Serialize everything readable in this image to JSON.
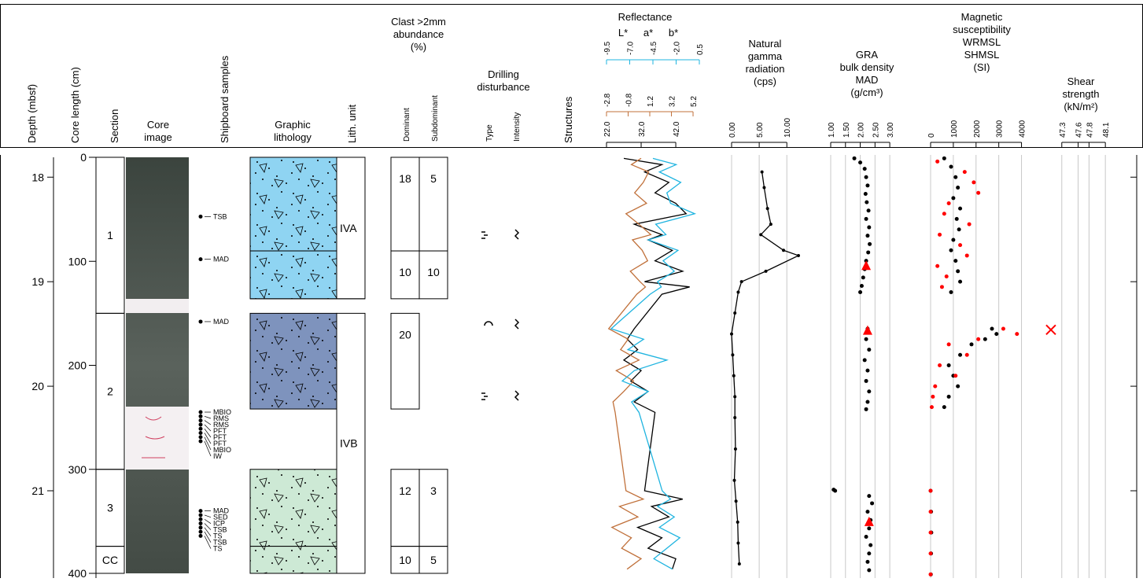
{
  "headers": {
    "depth": "Depth (mbsf)",
    "core_length": "Core length (cm)",
    "section": "Section",
    "core_image": [
      "Core",
      "image"
    ],
    "samples": "Shipboard samples",
    "lithology": [
      "Graphic",
      "lithology"
    ],
    "lith_unit": "Lith. unit",
    "clast": [
      "Clast >2mm",
      "abundance",
      "(%)"
    ],
    "dominant": "Dominant",
    "subdominant": "Subdominant",
    "disturbance": [
      "Drilling",
      "disturbance"
    ],
    "type": "Type",
    "intensity": "Intensity",
    "structures": "Structures"
  },
  "depth_axis": {
    "lim": [
      17.81,
      21.79
    ],
    "ticks": [
      18,
      19,
      20,
      21
    ]
  },
  "core_axis": {
    "lim": [
      0,
      400
    ],
    "ticks": [
      0,
      100,
      200,
      300,
      400
    ]
  },
  "sections": [
    {
      "label": "1",
      "top": 0,
      "bottom": 150
    },
    {
      "label": "2",
      "top": 150,
      "bottom": 300
    },
    {
      "label": "3",
      "top": 300,
      "bottom": 374
    },
    {
      "label": "CC",
      "top": 374,
      "bottom": 400
    }
  ],
  "lith_units": [
    {
      "label": "IVA",
      "top": 0,
      "bottom": 136
    },
    {
      "label": "IVB",
      "top": 150,
      "bottom": 400
    }
  ],
  "lithology": [
    {
      "top": 0,
      "bottom": 90,
      "color": "#8fd4f2"
    },
    {
      "top": 90,
      "bottom": 136,
      "color": "#8fd4f2"
    },
    {
      "top": 150,
      "bottom": 242,
      "color": "#7e93bd"
    },
    {
      "top": 300,
      "bottom": 374,
      "color": "#cde9d5"
    },
    {
      "top": 374,
      "bottom": 400,
      "color": "#cde9d5"
    }
  ],
  "clasts": [
    {
      "top": 0,
      "bottom": 90,
      "dominant": 18,
      "subdominant": 5
    },
    {
      "top": 90,
      "bottom": 136,
      "dominant": 10,
      "subdominant": 10
    },
    {
      "top": 150,
      "bottom": 242,
      "dominant": 20
    },
    {
      "top": 300,
      "bottom": 374,
      "dominant": 12,
      "subdominant": 3
    },
    {
      "top": 374,
      "bottom": 400,
      "dominant": 10,
      "subdominant": 5
    }
  ],
  "samples": [
    {
      "label": "TSB",
      "at": 57
    },
    {
      "label": "MAD",
      "at": 98
    },
    {
      "label": "MAD",
      "at": 158
    },
    {
      "label": "MBIO",
      "at": 245
    },
    {
      "label": "RMS",
      "at": 249
    },
    {
      "label": "RMS",
      "at": 253
    },
    {
      "label": "PFT",
      "at": 257
    },
    {
      "label": "PFT",
      "at": 261
    },
    {
      "label": "PFT",
      "at": 265
    },
    {
      "label": "MBIO",
      "at": 269
    },
    {
      "label": "IW",
      "at": 273
    },
    {
      "label": "MAD",
      "at": 340
    },
    {
      "label": "SED",
      "at": 344
    },
    {
      "label": "ICP",
      "at": 348
    },
    {
      "label": "TSB",
      "at": 352
    },
    {
      "label": "TS",
      "at": 356
    },
    {
      "label": "TSB",
      "at": 360
    },
    {
      "label": "TS",
      "at": 364
    }
  ],
  "chart_data": [
    {
      "type": "line",
      "title": [
        "Reflectance"
      ],
      "grid": false,
      "series": [
        {
          "name": "L*",
          "color": "#000000",
          "style": "line",
          "xlim": [
            22,
            48.8
          ],
          "xticks": [
            {
              "value": 22,
              "label": "22.0"
            },
            {
              "value": 32,
              "label": "32.0"
            },
            {
              "value": 42,
              "label": "42.0"
            }
          ],
          "depth": [
            17.82,
            17.88,
            17.95,
            18.05,
            18.15,
            18.25,
            18.35,
            18.45,
            18.55,
            18.6,
            18.7,
            18.8,
            18.9,
            19.0,
            19.05,
            19.12,
            19.45,
            19.55,
            19.65,
            19.75,
            19.85,
            19.95,
            20.05,
            20.15,
            20.25,
            21.0,
            21.08,
            21.15,
            21.25,
            21.35,
            21.45,
            21.55,
            21.65,
            21.75
          ],
          "values": [
            27,
            38,
            33,
            40,
            36,
            42,
            45,
            30,
            38,
            34,
            41,
            36,
            44,
            33,
            46,
            38,
            30,
            28,
            31,
            27,
            32,
            29,
            34,
            30,
            36,
            33,
            44,
            35,
            40,
            31,
            38,
            34,
            42,
            41
          ]
        },
        {
          "name": "a*",
          "color": "#c0703a",
          "style": "line",
          "xlim": [
            -2.8,
            5.78
          ],
          "xticks": [
            -2.8,
            -0.8,
            1.2,
            3.2,
            5.2
          ],
          "depth": [
            17.82,
            17.88,
            17.95,
            18.05,
            18.15,
            18.25,
            18.35,
            18.45,
            18.55,
            18.6,
            18.7,
            18.8,
            18.9,
            19.0,
            19.05,
            19.12,
            19.45,
            19.55,
            19.65,
            19.75,
            19.85,
            19.95,
            20.05,
            20.15,
            20.25,
            21.0,
            21.08,
            21.15,
            21.25,
            21.35,
            21.45,
            21.55,
            21.65,
            21.75
          ],
          "values": [
            0.4,
            -0.5,
            1.1,
            0.6,
            -0.2,
            0.9,
            -1.0,
            0.2,
            1.3,
            -0.4,
            0.5,
            1.0,
            -0.6,
            0.3,
            0.8,
            0.0,
            -2.6,
            -0.8,
            -1.5,
            0.2,
            -1.9,
            -0.3,
            -1.2,
            -2.2,
            -2.0,
            -1.0,
            0.6,
            -1.6,
            0.1,
            -2.3,
            -0.5,
            -1.4,
            0.4,
            -0.9
          ]
        },
        {
          "name": "b*",
          "color": "#1fb4e0",
          "style": "line",
          "xlim": [
            -9.5,
            0.5
          ],
          "xticks": [
            -9.5,
            {
              "value": -7,
              "label": "-7.0"
            },
            -4.5,
            {
              "value": -2,
              "label": "-2.0"
            },
            0.5
          ],
          "depth": [
            17.82,
            17.88,
            17.95,
            18.05,
            18.15,
            18.25,
            18.35,
            18.45,
            18.55,
            18.6,
            18.7,
            18.8,
            18.9,
            19.0,
            19.05,
            19.12,
            19.45,
            19.55,
            19.65,
            19.75,
            19.85,
            19.95,
            20.05,
            20.15,
            20.25,
            21.0,
            21.08,
            21.15,
            21.25,
            21.35,
            21.45,
            21.55,
            21.65,
            21.75
          ],
          "values": [
            -4.5,
            -2.0,
            -3.8,
            -1.5,
            -3.0,
            -2.6,
            0.0,
            -4.2,
            -3.1,
            -5.0,
            -1.8,
            -3.4,
            -2.2,
            -4.0,
            -3.6,
            -4.8,
            -9.0,
            -5.5,
            -7.2,
            -3.0,
            -6.5,
            -7.8,
            -5.0,
            -6.8,
            -6.0,
            -3.5,
            -2.6,
            -4.0,
            -2.2,
            -3.8,
            -1.6,
            -3.0,
            -4.4,
            -2.4
          ]
        }
      ]
    },
    {
      "type": "line",
      "title": [
        "Natural",
        "gamma",
        "radiation",
        "(cps)"
      ],
      "grid": true,
      "xlim": [
        0,
        12.1
      ],
      "xticks": [
        {
          "value": 0,
          "label": "0.00"
        },
        {
          "value": 5,
          "label": "5.00"
        },
        {
          "value": 10,
          "label": "10.00"
        }
      ],
      "series": [
        {
          "color": "#000000",
          "style": "linedots",
          "depth": [
            17.95,
            18.1,
            18.3,
            18.45,
            18.55,
            18.7,
            18.75,
            18.9,
            19.0,
            19.1,
            19.3,
            19.5,
            19.7,
            19.9,
            20.1,
            20.3,
            20.6,
            20.9,
            21.1,
            21.3,
            21.5,
            21.7
          ],
          "values": [
            5.5,
            5.9,
            6.5,
            7.1,
            5.3,
            9.4,
            12.1,
            6.2,
            1.8,
            1.2,
            0.6,
            0.0,
            0.2,
            0.4,
            0.6,
            0.6,
            0.7,
            0.5,
            0.8,
            1.1,
            1.2,
            1.4
          ]
        }
      ]
    },
    {
      "type": "scatter",
      "title": [
        "GRA",
        "bulk density"
      ],
      "unit": "(g/cm³)",
      "grid": true,
      "xlim": [
        1.0,
        3.45
      ],
      "xticks": [
        {
          "value": 1,
          "label": "1.00"
        },
        {
          "value": 1.5,
          "label": "1.50"
        },
        {
          "value": 2,
          "label": "2.00"
        },
        {
          "value": 2.5,
          "label": "2.50"
        },
        {
          "value": 3,
          "label": "3.00"
        }
      ],
      "series": [
        {
          "color": "#000000",
          "style": "dots",
          "depth": [
            17.82,
            17.86,
            17.92,
            18.0,
            18.08,
            18.16,
            18.24,
            18.32,
            18.4,
            18.48,
            18.56,
            18.64,
            18.72,
            18.8,
            18.88,
            18.96,
            19.04,
            19.1,
            19.45,
            19.55,
            19.65,
            19.75,
            19.85,
            19.95,
            20.05,
            20.15,
            20.22,
            20.99,
            21.0,
            21.05,
            21.12,
            21.2,
            21.28,
            21.36,
            21.44,
            21.52,
            21.6,
            21.68,
            21.76
          ],
          "values": [
            1.8,
            2.0,
            2.15,
            2.2,
            2.25,
            2.18,
            2.22,
            2.28,
            2.2,
            2.3,
            2.25,
            2.32,
            2.27,
            2.2,
            2.15,
            2.1,
            2.05,
            2.0,
            2.25,
            2.2,
            2.3,
            2.15,
            2.25,
            2.2,
            2.3,
            2.25,
            2.2,
            1.1,
            1.15,
            2.3,
            2.4,
            2.25,
            2.35,
            2.3,
            2.2,
            2.35,
            2.3,
            2.25,
            2.3
          ]
        },
        {
          "name": "MAD",
          "color": "#ff0000",
          "style": "triangles",
          "depth": [
            18.85,
            19.47,
            21.3
          ],
          "values": [
            2.2,
            2.25,
            2.3
          ]
        }
      ]
    },
    {
      "type": "scatter",
      "title": [
        "Magnetic",
        "susceptibility"
      ],
      "unit": "(SI)",
      "grid": true,
      "xlim": [
        0,
        4500
      ],
      "xticks": [
        0,
        1000,
        2000,
        3000,
        4000
      ],
      "series": [
        {
          "name": "WRMSL",
          "color": "#000000",
          "style": "dots",
          "depth": [
            17.82,
            17.9,
            18.0,
            18.1,
            18.2,
            18.3,
            18.4,
            18.5,
            18.6,
            18.7,
            18.8,
            18.9,
            19.0,
            19.1,
            19.45,
            19.5,
            19.55,
            19.6,
            19.7,
            19.8,
            19.9,
            20.0,
            20.1,
            20.2,
            21.0,
            21.2,
            21.4,
            21.6,
            21.8
          ],
          "values": [
            600,
            900,
            1100,
            1200,
            1000,
            1300,
            1150,
            1250,
            1000,
            900,
            1100,
            1200,
            1300,
            900,
            2700,
            2900,
            2400,
            1800,
            1300,
            800,
            1000,
            1200,
            800,
            600,
            0,
            20,
            30,
            20,
            10
          ]
        },
        {
          "name": "SHMSL",
          "color": "#ff0000",
          "style": "dots",
          "depth": [
            17.85,
            17.95,
            18.05,
            18.15,
            18.25,
            18.35,
            18.45,
            18.55,
            18.65,
            18.75,
            18.85,
            18.95,
            19.05,
            19.45,
            19.5,
            19.55,
            19.6,
            19.7,
            19.8,
            19.9,
            20.0,
            20.1,
            20.2,
            21.0,
            21.2,
            21.4,
            21.6,
            21.8
          ],
          "values": [
            300,
            1500,
            1900,
            2100,
            800,
            600,
            1700,
            400,
            1300,
            1600,
            300,
            700,
            500,
            3200,
            3800,
            2100,
            800,
            1600,
            400,
            1100,
            200,
            100,
            50,
            0,
            0,
            0,
            0,
            0
          ]
        }
      ]
    },
    {
      "type": "scatter",
      "title": [
        "Shear",
        "strength",
        "(kN/m²)"
      ],
      "grid": true,
      "xlim": [
        47.0,
        48.3
      ],
      "xticks": [
        47.3,
        47.6,
        47.8,
        48.1
      ],
      "series": [
        {
          "color": "#ff0000",
          "style": "cross",
          "depth": [
            19.46
          ],
          "values": [
            47.1
          ]
        }
      ]
    }
  ]
}
